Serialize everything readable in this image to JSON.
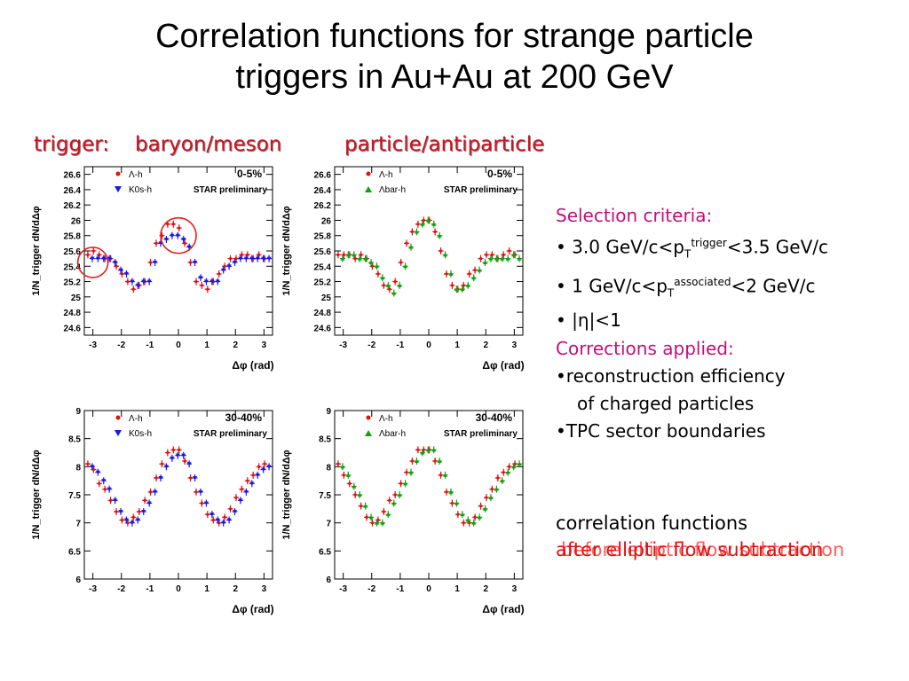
{
  "slide": {
    "title_line1": "Correlation functions for strange particle",
    "title_line2": "triggers in Au+Au at 200 GeV",
    "header_trigger": "trigger:",
    "header_bm": "baryon/meson",
    "header_pa": "particle/antiparticle"
  },
  "selection": {
    "heading": "Selection criteria:",
    "item1_pre": "• 3.0 GeV/c<p",
    "item1_sub": "T",
    "item1_sup": "trigger",
    "item1_post": "<3.5 GeV/c",
    "item2_pre": "• 1 GeV/c<p",
    "item2_sub": "T",
    "item2_sup": "associated",
    "item2_post": "<2 GeV/c",
    "item3": "• |η|<1"
  },
  "corrections": {
    "heading": "Corrections applied:",
    "item1a": "•reconstruction efficiency",
    "item1b": "of charged particles",
    "item2": "•TPC sector boundaries"
  },
  "footer": {
    "line1": "correlation functions",
    "line2a": "before elliptic flow subtraction",
    "line2b": "after elliptic flow subtraction"
  },
  "colors": {
    "red": "#e01010",
    "blue": "#1a1ae0",
    "green": "#10a010",
    "circle": "#e02020"
  },
  "chart_data": [
    {
      "type": "scatter",
      "centrality": "0-5%",
      "preliminary": "STAR preliminary",
      "ylabel": "1/N_trigger dN/dΔφ",
      "xlabel": "Δφ (rad)",
      "xlim": [
        -3.3,
        3.3
      ],
      "ylim": [
        24.5,
        26.7
      ],
      "yticks": [
        "24.6",
        "24.8",
        "25",
        "25.2",
        "25.4",
        "25.6",
        "25.8",
        "26",
        "26.2",
        "26.4",
        "26.6"
      ],
      "xticks": [
        "-3",
        "-2",
        "-1",
        "0",
        "1",
        "2",
        "3"
      ],
      "x": [
        -3.1,
        -2.9,
        -2.7,
        -2.5,
        -2.3,
        -2.1,
        -1.9,
        -1.7,
        -1.5,
        -1.3,
        -1.1,
        -0.9,
        -0.7,
        -0.5,
        -0.3,
        -0.1,
        0.1,
        0.3,
        0.5,
        0.7,
        0.9,
        1.1,
        1.3,
        1.5,
        1.7,
        1.9,
        2.1,
        2.3,
        2.5,
        2.7,
        2.9,
        3.1
      ],
      "series": [
        {
          "name": "Λ-h",
          "color": "#e01010",
          "values": [
            25.55,
            25.6,
            25.55,
            25.5,
            25.5,
            25.4,
            25.3,
            25.2,
            25.1,
            25.15,
            25.2,
            25.45,
            25.7,
            25.8,
            25.95,
            25.95,
            25.9,
            25.7,
            25.45,
            25.2,
            25.15,
            25.1,
            25.2,
            25.3,
            25.4,
            25.5,
            25.5,
            25.55,
            25.55,
            25.5,
            25.55,
            25.5
          ]
        },
        {
          "name": "K0s-h",
          "color": "#1a1ae0",
          "values": [
            25.5,
            25.5,
            25.5,
            25.5,
            25.45,
            25.35,
            25.3,
            25.2,
            25.15,
            25.2,
            25.2,
            25.45,
            25.7,
            25.75,
            25.8,
            25.8,
            25.75,
            25.65,
            25.45,
            25.25,
            25.2,
            25.2,
            25.2,
            25.35,
            25.4,
            25.45,
            25.5,
            25.5,
            25.5,
            25.5,
            25.5,
            25.5
          ]
        }
      ]
    },
    {
      "type": "scatter",
      "centrality": "0-5%",
      "preliminary": "STAR preliminary",
      "ylabel": "1/N_trigger dN/dΔφ",
      "xlabel": "Δφ (rad)",
      "xlim": [
        -3.3,
        3.3
      ],
      "ylim": [
        24.5,
        26.7
      ],
      "yticks": [
        "24.6",
        "24.8",
        "25",
        "25.2",
        "25.4",
        "25.6",
        "25.8",
        "26",
        "26.2",
        "26.4",
        "26.6"
      ],
      "xticks": [
        "-3",
        "-2",
        "-1",
        "0",
        "1",
        "2",
        "3"
      ],
      "x": [
        -3.1,
        -2.9,
        -2.7,
        -2.5,
        -2.3,
        -2.1,
        -1.9,
        -1.7,
        -1.5,
        -1.3,
        -1.1,
        -0.9,
        -0.7,
        -0.5,
        -0.3,
        -0.1,
        0.1,
        0.3,
        0.5,
        0.7,
        0.9,
        1.1,
        1.3,
        1.5,
        1.7,
        1.9,
        2.1,
        2.3,
        2.5,
        2.7,
        2.9,
        3.1
      ],
      "series": [
        {
          "name": "Λ-h",
          "color": "#e01010",
          "values": [
            25.55,
            25.55,
            25.55,
            25.5,
            25.55,
            25.5,
            25.4,
            25.3,
            25.15,
            25.1,
            25.2,
            25.45,
            25.7,
            25.85,
            25.95,
            26.0,
            26.0,
            25.85,
            25.6,
            25.3,
            25.15,
            25.1,
            25.15,
            25.3,
            25.35,
            25.5,
            25.55,
            25.55,
            25.5,
            25.55,
            25.6,
            25.55
          ]
        },
        {
          "name": "Λbar-h",
          "color": "#10a010",
          "values": [
            25.5,
            25.55,
            25.55,
            25.5,
            25.5,
            25.45,
            25.4,
            25.25,
            25.15,
            25.05,
            25.15,
            25.4,
            25.65,
            25.85,
            25.95,
            26.0,
            25.95,
            25.8,
            25.55,
            25.3,
            25.1,
            25.1,
            25.15,
            25.25,
            25.35,
            25.45,
            25.5,
            25.5,
            25.5,
            25.5,
            25.55,
            25.5
          ]
        }
      ]
    },
    {
      "type": "scatter",
      "centrality": "30-40%",
      "preliminary": "STAR preliminary",
      "ylabel": "1/N_trigger dN/dΔφ",
      "xlabel": "Δφ (rad)",
      "xlim": [
        -3.3,
        3.3
      ],
      "ylim": [
        6,
        9
      ],
      "yticks": [
        "6",
        "6.5",
        "7",
        "7.5",
        "8",
        "8.5",
        "9"
      ],
      "xticks": [
        "-3",
        "-2",
        "-1",
        "0",
        "1",
        "2",
        "3"
      ],
      "x": [
        -3.1,
        -2.9,
        -2.7,
        -2.5,
        -2.3,
        -2.1,
        -1.9,
        -1.7,
        -1.5,
        -1.3,
        -1.1,
        -0.9,
        -0.7,
        -0.5,
        -0.3,
        -0.1,
        0.1,
        0.3,
        0.5,
        0.7,
        0.9,
        1.1,
        1.3,
        1.5,
        1.7,
        1.9,
        2.1,
        2.3,
        2.5,
        2.7,
        2.9,
        3.1
      ],
      "series": [
        {
          "name": "Λ-h",
          "color": "#e01010",
          "values": [
            8.05,
            7.95,
            7.7,
            7.6,
            7.4,
            7.2,
            7.05,
            7.0,
            7.1,
            7.2,
            7.4,
            7.55,
            7.8,
            8.05,
            8.25,
            8.3,
            8.3,
            8.1,
            7.8,
            7.55,
            7.35,
            7.15,
            7.05,
            7.0,
            7.1,
            7.25,
            7.45,
            7.6,
            7.75,
            7.85,
            8.0,
            8.05
          ]
        },
        {
          "name": "K0s-h",
          "color": "#1a1ae0",
          "values": [
            8.0,
            7.9,
            7.75,
            7.6,
            7.4,
            7.2,
            7.05,
            7.0,
            7.05,
            7.2,
            7.35,
            7.55,
            7.8,
            8.0,
            8.15,
            8.2,
            8.2,
            8.05,
            7.8,
            7.55,
            7.35,
            7.15,
            7.05,
            7.0,
            7.05,
            7.2,
            7.4,
            7.55,
            7.7,
            7.85,
            7.95,
            8.0
          ]
        }
      ]
    },
    {
      "type": "scatter",
      "centrality": "30-40%",
      "preliminary": "STAR preliminary",
      "ylabel": "1/N_trigger dN/dΔφ",
      "xlabel": "Δφ (rad)",
      "xlim": [
        -3.3,
        3.3
      ],
      "ylim": [
        6,
        9
      ],
      "yticks": [
        "6",
        "6.5",
        "7",
        "7.5",
        "8",
        "8.5",
        "9"
      ],
      "xticks": [
        "-3",
        "-2",
        "-1",
        "0",
        "1",
        "2",
        "3"
      ],
      "x": [
        -3.1,
        -2.9,
        -2.7,
        -2.5,
        -2.3,
        -2.1,
        -1.9,
        -1.7,
        -1.5,
        -1.3,
        -1.1,
        -0.9,
        -0.7,
        -0.5,
        -0.3,
        -0.1,
        0.1,
        0.3,
        0.5,
        0.7,
        0.9,
        1.1,
        1.3,
        1.5,
        1.7,
        1.9,
        2.1,
        2.3,
        2.5,
        2.7,
        2.9,
        3.1
      ],
      "series": [
        {
          "name": "Λ-h",
          "color": "#e01010",
          "values": [
            8.05,
            7.85,
            7.7,
            7.5,
            7.3,
            7.1,
            7.0,
            7.05,
            7.2,
            7.4,
            7.5,
            7.7,
            7.9,
            8.1,
            8.3,
            8.3,
            8.3,
            8.1,
            7.85,
            7.55,
            7.35,
            7.15,
            7.0,
            7.0,
            7.1,
            7.3,
            7.45,
            7.6,
            7.8,
            7.9,
            8.0,
            8.05
          ]
        },
        {
          "name": "Λbar-h",
          "color": "#10a010",
          "values": [
            8.0,
            7.85,
            7.65,
            7.5,
            7.3,
            7.1,
            7.0,
            7.0,
            7.15,
            7.35,
            7.5,
            7.7,
            7.9,
            8.1,
            8.25,
            8.3,
            8.3,
            8.1,
            7.85,
            7.55,
            7.35,
            7.15,
            7.05,
            7.0,
            7.1,
            7.25,
            7.45,
            7.6,
            7.75,
            7.9,
            8.0,
            8.05
          ]
        }
      ]
    }
  ]
}
